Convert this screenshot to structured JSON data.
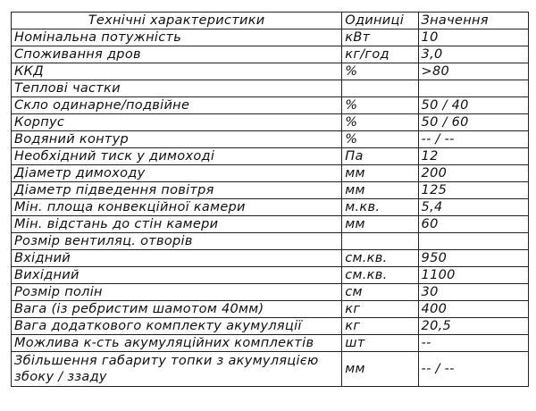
{
  "table": {
    "headers": [
      "Технічні характеристики",
      "Одиниці",
      "Значення"
    ],
    "rows": [
      [
        "Номінальна потужність",
        "кВт",
        "10"
      ],
      [
        "Споживання дров",
        "кг/год",
        "3,0"
      ],
      [
        "ККД",
        "%",
        ">80"
      ],
      [
        "Теплові частки",
        "",
        ""
      ],
      [
        "Скло одинарне/подвійне",
        "%",
        "50 / 40"
      ],
      [
        "Корпус",
        "%",
        "50 / 60"
      ],
      [
        "Водяний контур",
        "%",
        "-- / --"
      ],
      [
        "Необхідний тиск у димоході",
        "Па",
        "12"
      ],
      [
        "Діаметр димоходу",
        "мм",
        "200"
      ],
      [
        "Діаметр підведення повітря",
        "мм",
        "125"
      ],
      [
        "Мін. площа конвекційної камери",
        "м.кв.",
        "5,4"
      ],
      [
        "Мін. відстань до стін камери",
        "мм",
        "60"
      ],
      [
        "Розмір вентиляц. отворів",
        "",
        ""
      ],
      [
        "Вхідний",
        "см.кв.",
        "950"
      ],
      [
        "Вихідний",
        "см.кв.",
        "1100"
      ],
      [
        "Розмір полін",
        "см",
        "30"
      ],
      [
        "Вага (із ребристим шамотом 40мм)",
        "кг",
        "400"
      ],
      [
        "Вага додаткового комплекту акумуляції",
        "кг",
        "20,5"
      ],
      [
        "Можлива к-сть акумуляційних комплектів",
        "шт",
        "--"
      ],
      [
        "Збільшення габариту топки з акумуляцією збоку / ззаду",
        "мм",
        "-- / --"
      ]
    ]
  }
}
